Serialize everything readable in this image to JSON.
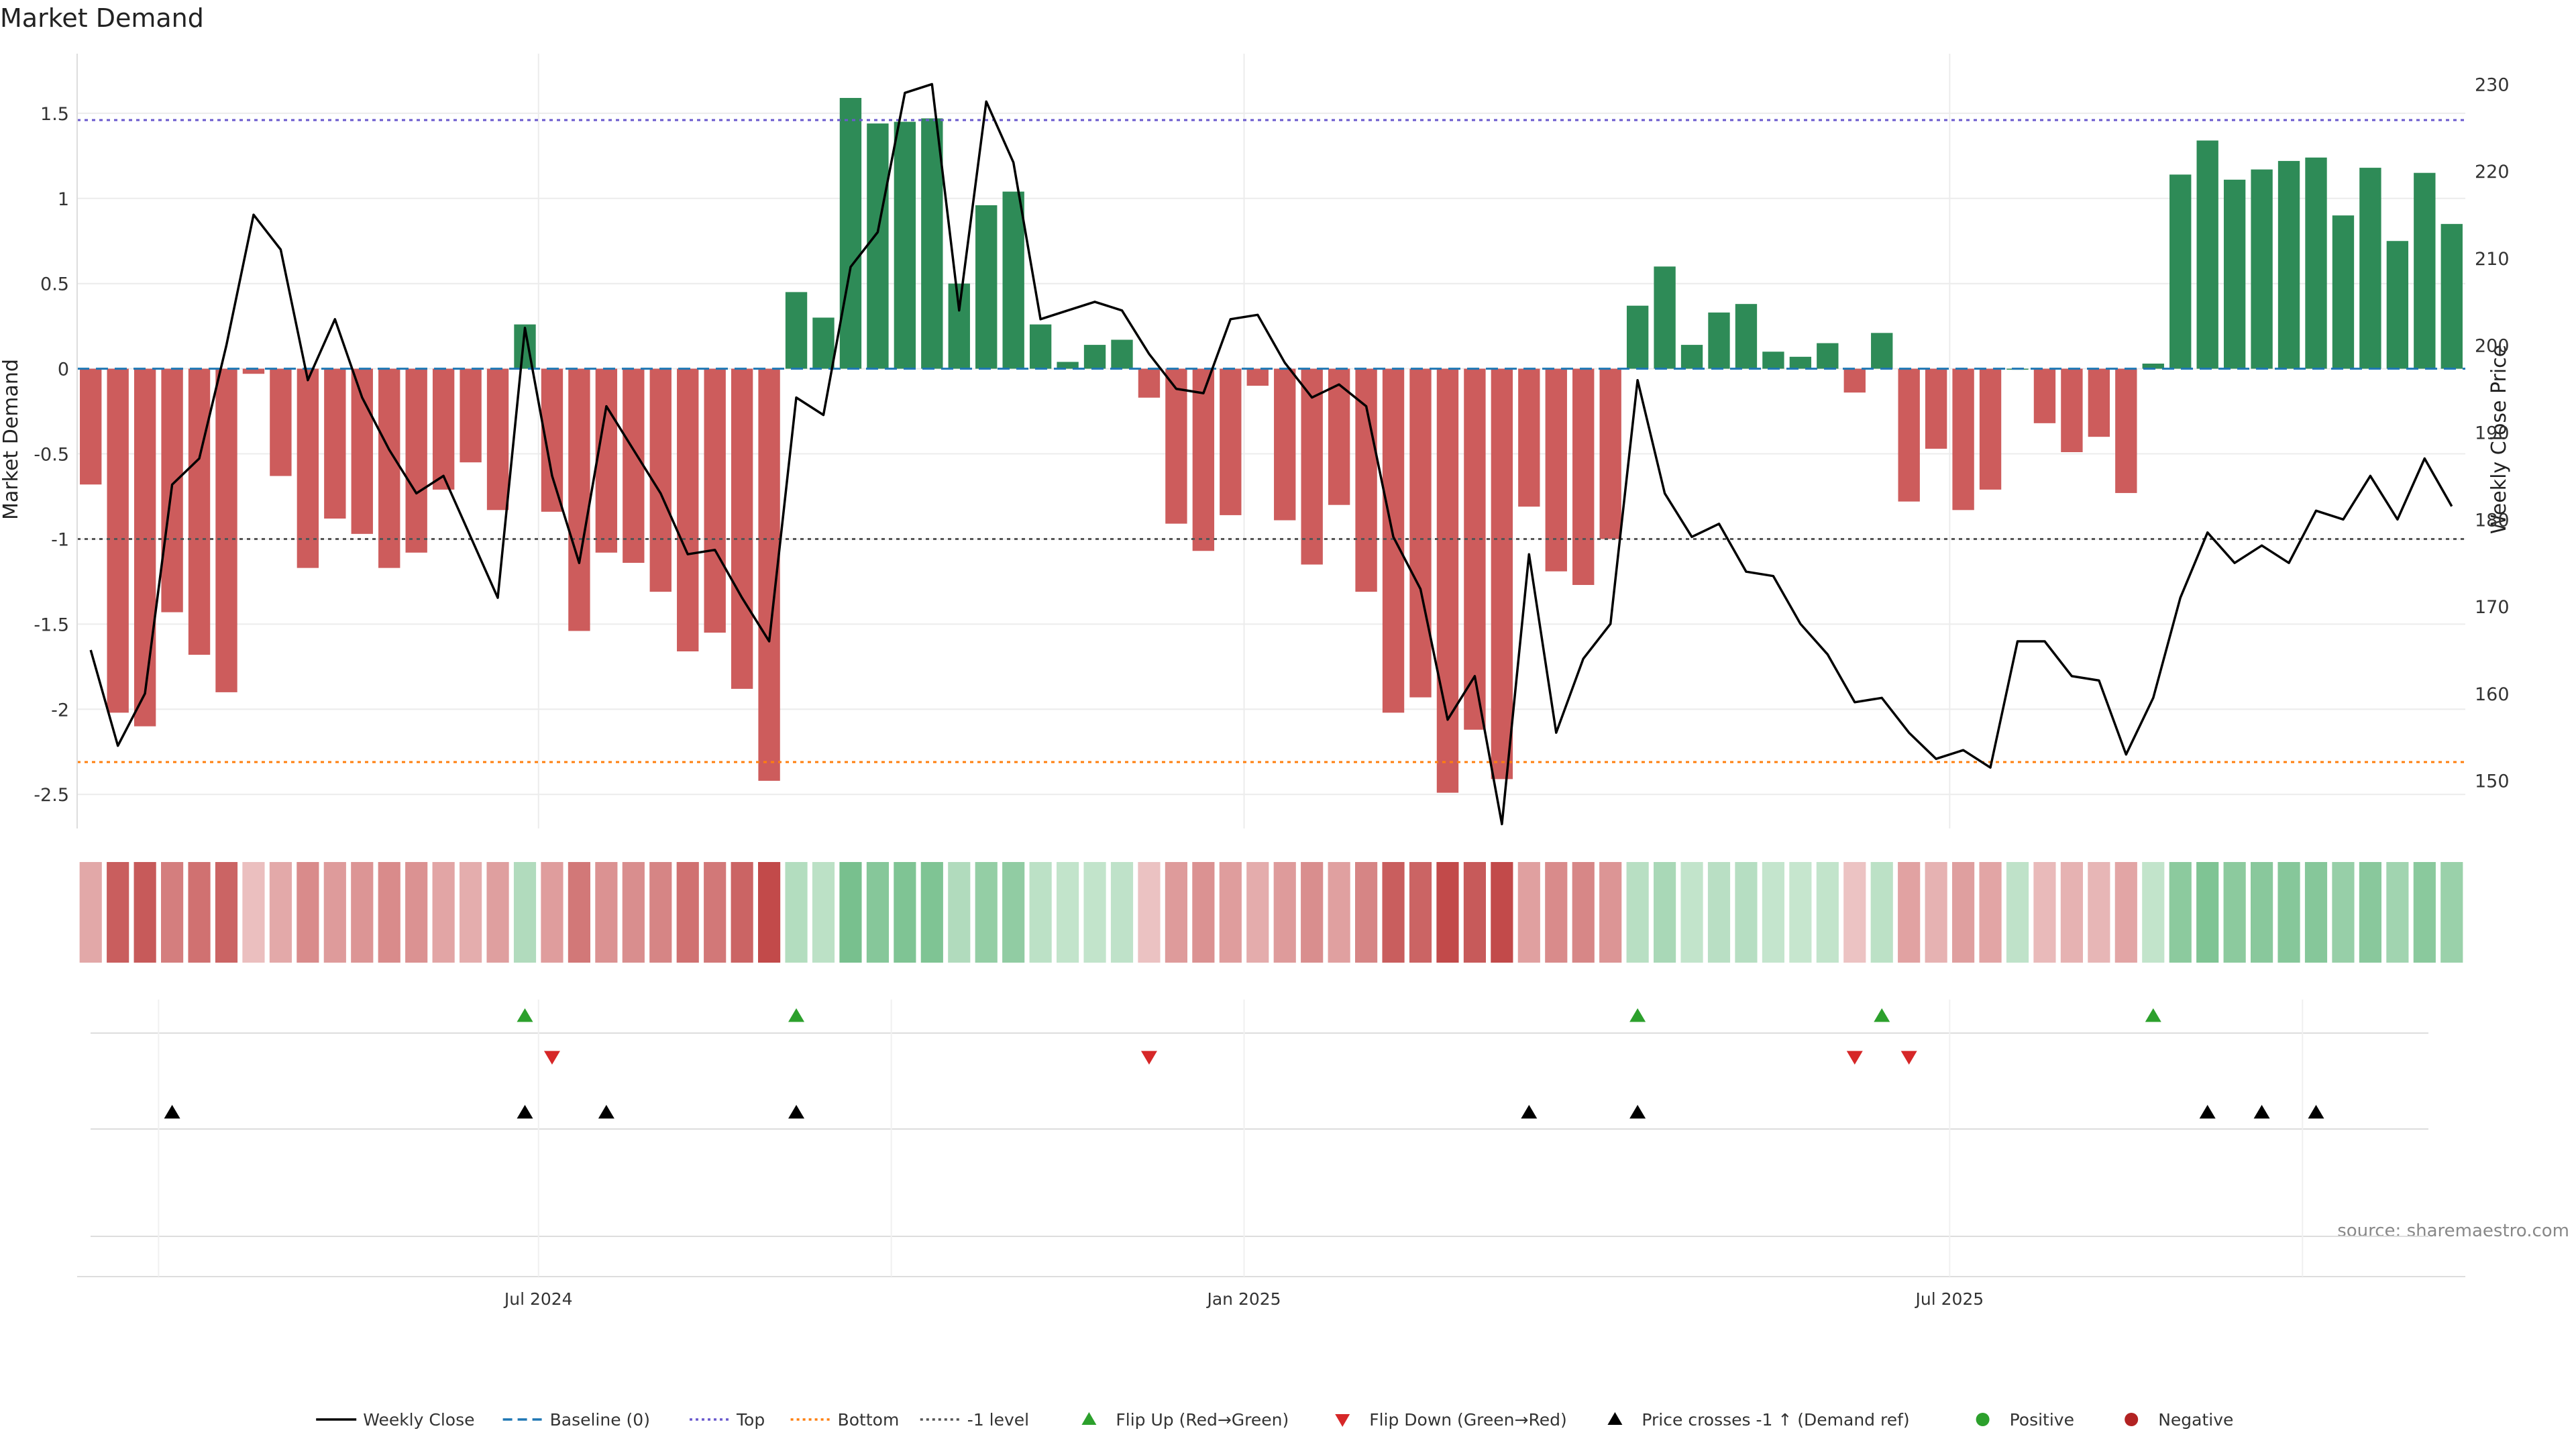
{
  "chart_data": {
    "type": "bar",
    "title": "Market Demand",
    "ylabel": "Market Demand",
    "y2label": "Weekly Close Price",
    "ylim": [
      -2.7,
      1.85
    ],
    "y2lim": [
      144.5,
      233.5
    ],
    "yticks": [
      1.5,
      1,
      0.5,
      0,
      -0.5,
      -1,
      -1.5,
      -2,
      -2.5
    ],
    "ytick_labels": [
      "1.5",
      "1",
      "0.5",
      "0",
      "-0.5",
      "-1",
      "-1.5",
      "-2",
      "-2.5"
    ],
    "y2ticks": [
      230,
      220,
      210,
      200,
      190,
      180,
      170,
      160,
      150
    ],
    "y2tick_labels": [
      "230",
      "220",
      "210",
      "200",
      "190",
      "180",
      "170",
      "160",
      "150"
    ],
    "xticks": [
      16.5,
      42.5,
      68.5
    ],
    "xtick_labels": [
      "Jul 2024",
      "Jan 2025",
      "Jul 2025"
    ],
    "n_weeks": 88,
    "levels": {
      "top": 1.46,
      "bottom": -2.31,
      "minus_one": -1.0,
      "baseline": 0
    },
    "demand": [
      -0.68,
      -2.02,
      -2.1,
      -1.43,
      -1.68,
      -1.9,
      -0.03,
      -0.63,
      -1.17,
      -0.88,
      -0.97,
      -1.17,
      -1.08,
      -0.71,
      -0.55,
      -0.83,
      0.26,
      -0.84,
      -1.54,
      -1.08,
      -1.14,
      -1.31,
      -1.66,
      -1.55,
      -1.88,
      -2.42,
      0.45,
      0.3,
      1.59,
      1.44,
      1.45,
      1.47,
      0.5,
      0.96,
      1.04,
      0.26,
      0.04,
      0.14,
      0.17,
      -0.17,
      -0.91,
      -1.07,
      -0.86,
      -0.1,
      -0.89,
      -1.15,
      -0.8,
      -1.31,
      -2.02,
      -1.93,
      -2.49,
      -2.12,
      -2.41,
      -0.81,
      -1.19,
      -1.27,
      -1.0,
      0.37,
      0.6,
      0.14,
      0.33,
      0.38,
      0.1,
      0.07,
      0.15,
      -0.14,
      0.21,
      -0.78,
      -0.47,
      -0.83,
      -0.71,
      -0.0,
      -0.32,
      -0.49,
      -0.4,
      -0.73,
      0.03,
      1.14,
      1.34,
      1.11,
      1.17,
      1.22,
      1.24,
      0.9,
      1.18,
      0.75,
      1.15,
      0.85
    ],
    "weekly_close": [
      165,
      154,
      160,
      184,
      187,
      200,
      215,
      211,
      196,
      203,
      194,
      188,
      183,
      185,
      178,
      171,
      202,
      185,
      175,
      193,
      188,
      183,
      176,
      176.5,
      171,
      166,
      194,
      192,
      209,
      213,
      229,
      230,
      204,
      228,
      221,
      203,
      204,
      205,
      204,
      199,
      195,
      194.5,
      203,
      203.5,
      198,
      194,
      195.5,
      193,
      178,
      172,
      157,
      162,
      145,
      176,
      155.5,
      164,
      168,
      196,
      183,
      178,
      179.5,
      174,
      173.5,
      168,
      164.5,
      159,
      159.5,
      155.5,
      152.5,
      153.5,
      151.5,
      166,
      166,
      162,
      161.5,
      153,
      159.5,
      171,
      178.5,
      175,
      177,
      175,
      181,
      180,
      185,
      180,
      187,
      181.5
    ],
    "band_intensity": [
      0.28,
      0.85,
      0.88,
      0.6,
      0.7,
      0.8,
      0.1,
      0.27,
      0.5,
      0.38,
      0.42,
      0.5,
      0.45,
      0.3,
      0.24,
      0.35,
      0.2,
      0.36,
      0.65,
      0.45,
      0.48,
      0.55,
      0.7,
      0.65,
      0.8,
      1.0,
      0.18,
      0.12,
      0.6,
      0.5,
      0.55,
      0.55,
      0.2,
      0.4,
      0.42,
      0.12,
      0.08,
      0.08,
      0.1,
      0.08,
      0.38,
      0.45,
      0.36,
      0.25,
      0.38,
      0.48,
      0.34,
      0.55,
      0.85,
      0.8,
      1.0,
      0.88,
      1.0,
      0.34,
      0.5,
      0.53,
      0.42,
      0.15,
      0.25,
      0.08,
      0.14,
      0.16,
      0.06,
      0.05,
      0.08,
      0.07,
      0.12,
      0.32,
      0.2,
      0.35,
      0.3,
      0.1,
      0.14,
      0.2,
      0.17,
      0.3,
      0.08,
      0.46,
      0.55,
      0.46,
      0.48,
      0.5,
      0.5,
      0.38,
      0.48,
      0.31,
      0.47,
      0.36
    ],
    "flip_up_weeks": [
      16,
      26,
      57,
      66,
      76
    ],
    "flip_down_weeks": [
      17,
      39,
      65,
      67
    ],
    "price_cross_weeks": [
      3,
      16,
      19,
      26,
      53,
      57,
      78,
      80,
      82
    ],
    "legend": [
      "Weekly Close",
      "Baseline (0)",
      "Top",
      "Bottom",
      "-1 level",
      "Flip Up (Red→Green)",
      "Flip Down (Green→Red)",
      "Price crosses -1 ↑ (Demand ref)",
      "Positive",
      "Negative"
    ],
    "source": "source: sharemaestro.com",
    "colors": {
      "positive": "#2e8b57",
      "negative": "#cd5c5c",
      "line": "#000000",
      "baseline": "#1f77b4",
      "top": "#6a5acd",
      "bottom": "#ff7f0e",
      "minus_one": "#555555",
      "flip_up": "#2ca02c",
      "flip_down": "#d62728",
      "cross": "#000000",
      "legend_positive": "#2ca02c",
      "legend_negative": "#b22222"
    }
  }
}
